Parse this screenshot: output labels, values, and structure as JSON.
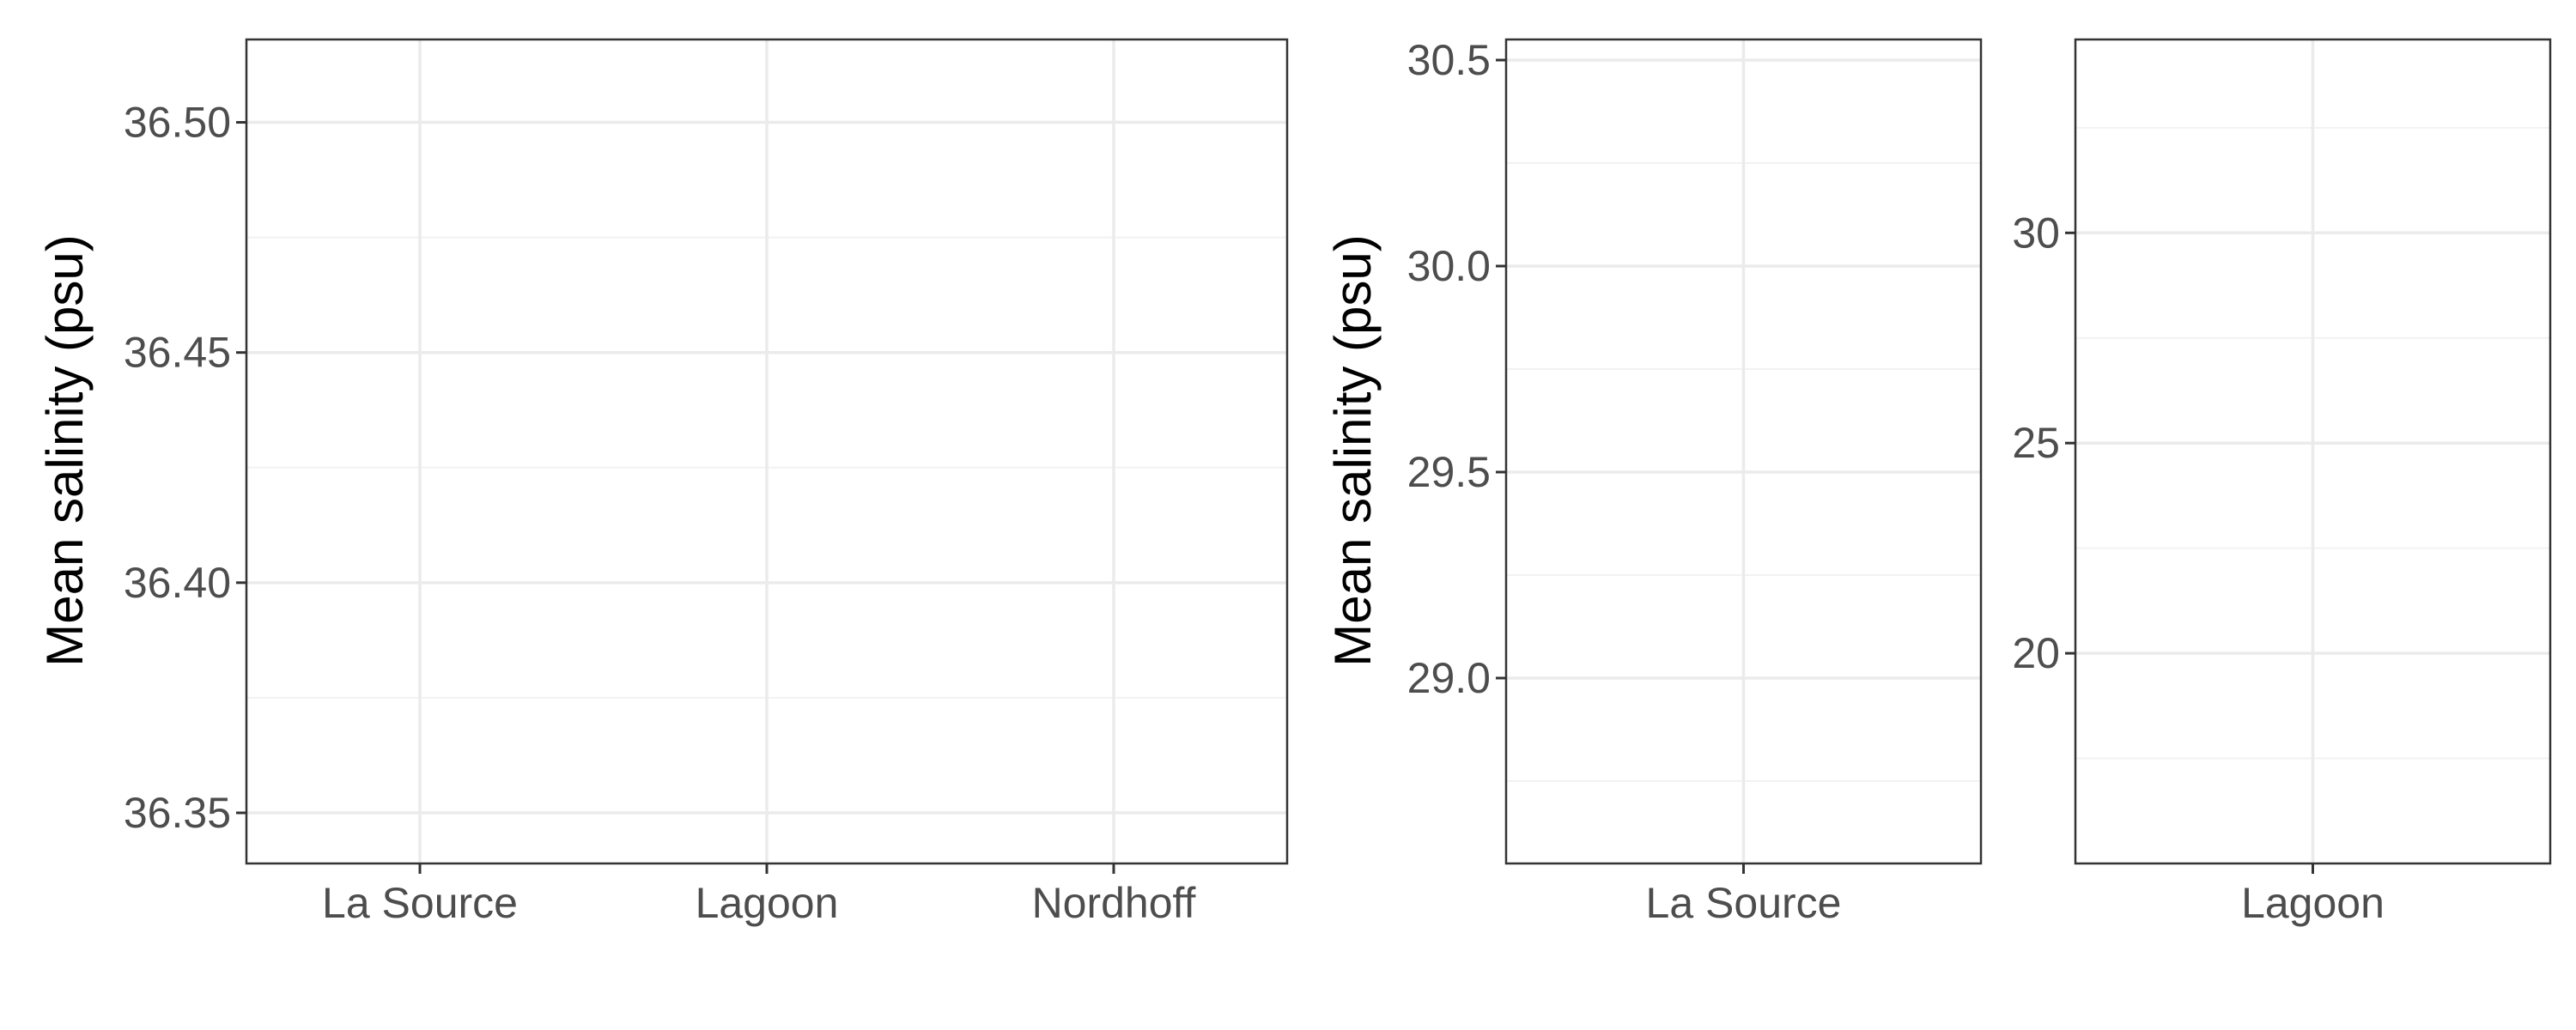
{
  "chart_data": [
    {
      "type": "scatter",
      "title": "",
      "xlabel": "",
      "ylabel": "Mean salinity (psu)",
      "categories": [
        "La Source",
        "Lagoon",
        "Nordhoff"
      ],
      "ylim": [
        36.339,
        36.518
      ],
      "y_ticks": [
        36.35,
        36.4,
        36.45,
        36.5
      ],
      "y_tick_labels": [
        "36.35",
        "36.40",
        "36.45",
        "36.50"
      ],
      "grid": true,
      "series": []
    },
    {
      "type": "scatter",
      "title": "",
      "xlabel": "",
      "ylabel": "Mean salinity (psu)",
      "categories": [
        "La Source"
      ],
      "ylim": [
        28.55,
        30.55
      ],
      "y_ticks": [
        29.0,
        29.5,
        30.0,
        30.5
      ],
      "y_tick_labels": [
        "29.0",
        "29.5",
        "30.0",
        "30.5"
      ],
      "grid": true,
      "series": []
    },
    {
      "type": "scatter",
      "title": "",
      "xlabel": "",
      "ylabel": "",
      "categories": [
        "Lagoon"
      ],
      "ylim": [
        15,
        34.6
      ],
      "y_ticks": [
        20,
        25,
        30
      ],
      "y_tick_labels": [
        "20",
        "25",
        "30"
      ],
      "grid": true,
      "series": []
    }
  ]
}
